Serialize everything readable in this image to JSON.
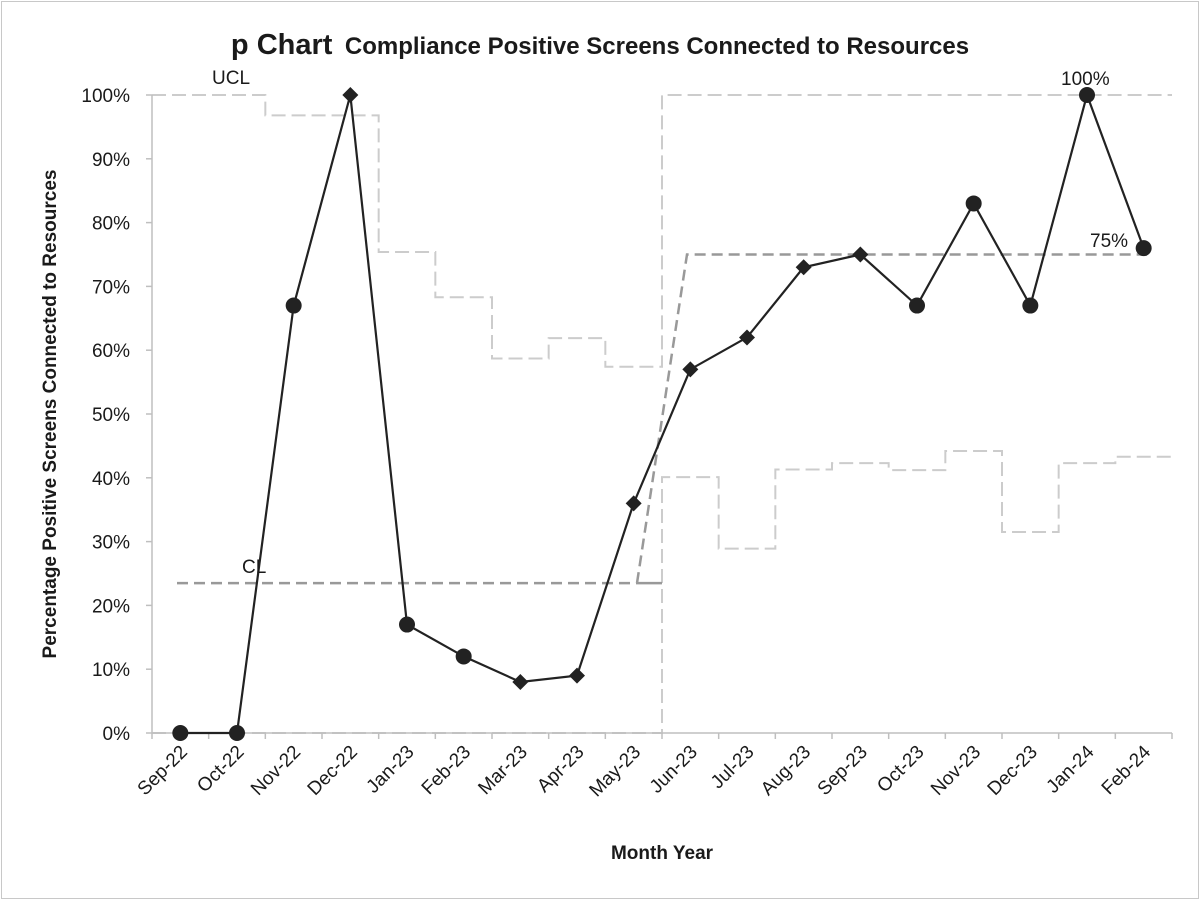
{
  "chart_data": {
    "type": "line",
    "title": "p Chart",
    "subtitle": "Compliance Positive Screens Connected to Resources",
    "xlabel": "Month Year",
    "ylabel": "Percentage Positive Screens Connected to Resources",
    "ylim": [
      0,
      100
    ],
    "y_ticks": [
      "0%",
      "10%",
      "20%",
      "30%",
      "40%",
      "50%",
      "60%",
      "70%",
      "80%",
      "90%",
      "100%"
    ],
    "categories": [
      "Sep-22",
      "Oct-22",
      "Nov-22",
      "Dec-22",
      "Jan-23",
      "Feb-23",
      "Mar-23",
      "Apr-23",
      "May-23",
      "Jun-23",
      "Jul-23",
      "Aug-23",
      "Sep-23",
      "Oct-23",
      "Nov-23",
      "Dec-23",
      "Jan-24",
      "Feb-24"
    ],
    "grid": false,
    "series": [
      {
        "values": [
          0,
          0,
          67,
          100,
          17,
          12,
          8,
          9,
          36,
          57,
          62,
          73,
          75,
          67,
          83,
          67,
          100,
          76
        ],
        "markers": [
          "circle",
          "circle",
          "circle",
          "diamond",
          "circle",
          "circle",
          "diamond",
          "diamond",
          "diamond",
          "diamond",
          "diamond",
          "diamond",
          "diamond",
          "circle",
          "circle",
          "circle",
          "circle",
          "circle"
        ],
        "color": "#222222"
      }
    ],
    "control_limits": {
      "cl": [
        23.5,
        23.5,
        23.5,
        23.5,
        23.5,
        23.5,
        23.5,
        23.5,
        23.5,
        75,
        75,
        75,
        75,
        75,
        75,
        75,
        75,
        75
      ],
      "ucl": [
        100,
        100,
        96.8,
        96.8,
        75.4,
        68.3,
        58.7,
        61.9,
        57.4,
        100,
        100,
        100,
        100,
        100,
        100,
        100,
        100,
        100
      ],
      "lcl": [
        0,
        0,
        0,
        0,
        0,
        0,
        0,
        0,
        0,
        40.1,
        28.9,
        41.3,
        42.3,
        41.2,
        44.2,
        31.5,
        42.3,
        43.3
      ],
      "cl_color": "#999999",
      "limit_color": "#cccccc"
    },
    "annotations": {
      "ucl_label": "UCL",
      "cl_label": "CL",
      "cl_value_label": "75%",
      "max_value_label": "100%"
    }
  }
}
